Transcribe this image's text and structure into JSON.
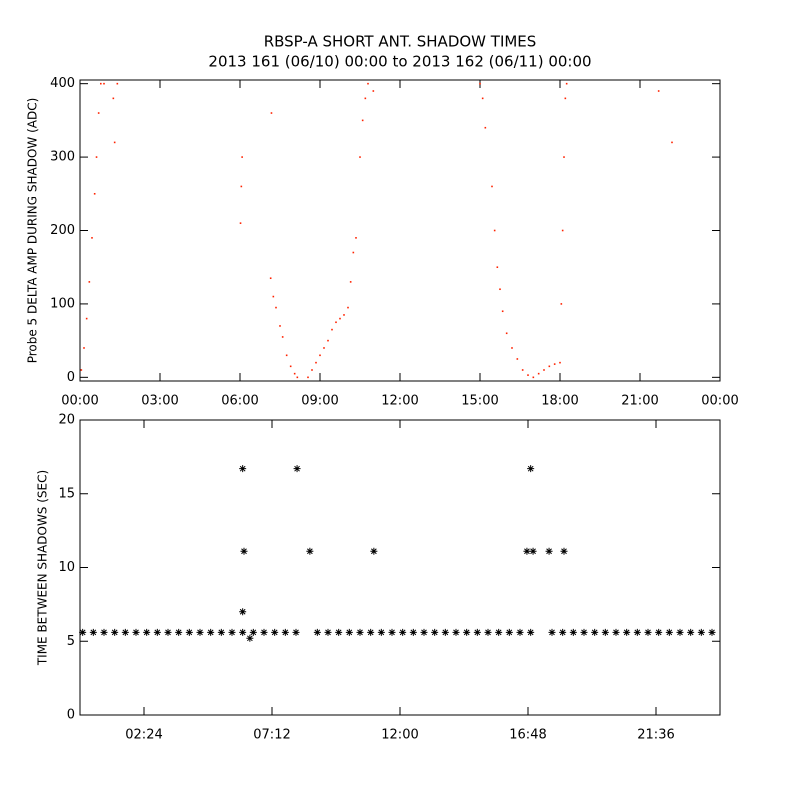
{
  "chart_data": [
    {
      "type": "scatter",
      "title": "RBSP-A SHORT ANT. SHADOW TIMES",
      "subtitle": "2013 161 (06/10) 00:00 to 2013 162 (06/11) 00:00",
      "y_label": "Probe 5 DELTA AMP DURING SHADOW (ADC)",
      "marker": "dot",
      "color": "#ff2200",
      "xlim": [
        0,
        24
      ],
      "xticks": [
        {
          "value": 0,
          "label": "00:00"
        },
        {
          "value": 3,
          "label": "03:00"
        },
        {
          "value": 6,
          "label": "06:00"
        },
        {
          "value": 9,
          "label": "09:00"
        },
        {
          "value": 12,
          "label": "12:00"
        },
        {
          "value": 15,
          "label": "15:00"
        },
        {
          "value": 18,
          "label": "18:00"
        },
        {
          "value": 21,
          "label": "21:00"
        },
        {
          "value": 24,
          "label": "00:00"
        }
      ],
      "ylim": [
        -5,
        405
      ],
      "yticks": [
        0,
        100,
        200,
        300,
        400
      ],
      "x": [
        0.05,
        0.15,
        0.25,
        0.35,
        0.45,
        0.55,
        0.62,
        0.7,
        0.78,
        0.9,
        1.25,
        1.3,
        1.4,
        6.02,
        6.05,
        6.08,
        7.15,
        7.18,
        7.25,
        7.35,
        7.5,
        7.6,
        7.75,
        7.9,
        8.05,
        8.15,
        8.55,
        8.7,
        8.85,
        9.0,
        9.15,
        9.3,
        9.45,
        9.6,
        9.75,
        9.9,
        10.05,
        10.15,
        10.25,
        10.35,
        10.5,
        10.6,
        10.7,
        10.8,
        11.0,
        15.0,
        15.1,
        15.2,
        15.45,
        15.55,
        15.65,
        15.75,
        15.85,
        16.0,
        16.2,
        16.4,
        16.6,
        16.8,
        17.0,
        17.2,
        17.4,
        17.6,
        17.8,
        18.0,
        18.05,
        18.1,
        18.15,
        18.2,
        18.25,
        21.7,
        22.2
      ],
      "values": [
        10,
        40,
        80,
        130,
        190,
        250,
        300,
        360,
        400,
        400,
        380,
        320,
        400,
        210,
        260,
        300,
        135,
        360,
        110,
        95,
        70,
        55,
        30,
        15,
        5,
        0,
        0,
        10,
        20,
        30,
        40,
        50,
        65,
        75,
        80,
        85,
        95,
        130,
        170,
        190,
        300,
        350,
        380,
        400,
        390,
        400,
        380,
        340,
        260,
        200,
        150,
        120,
        90,
        60,
        40,
        25,
        10,
        3,
        0,
        5,
        10,
        15,
        18,
        20,
        100,
        200,
        300,
        380,
        400,
        390,
        320
      ]
    },
    {
      "type": "scatter",
      "y_label": "TIME BETWEEN SHADOWS (SEC)",
      "marker": "asterisk",
      "color": "#000000",
      "xlim": [
        0,
        24
      ],
      "xticks": [
        {
          "value": 2.4,
          "label": "02:24"
        },
        {
          "value": 7.2,
          "label": "07:12"
        },
        {
          "value": 12,
          "label": "12:00"
        },
        {
          "value": 16.8,
          "label": "16:48"
        },
        {
          "value": 21.6,
          "label": "21:36"
        }
      ],
      "ylim": [
        0,
        20
      ],
      "yticks": [
        0,
        5,
        10,
        15,
        20
      ],
      "x": [
        0.1,
        0.5,
        0.9,
        1.3,
        1.7,
        2.1,
        2.5,
        2.9,
        3.3,
        3.7,
        4.1,
        4.5,
        4.9,
        5.3,
        5.7,
        6.1,
        6.5,
        6.9,
        7.3,
        7.7,
        8.1,
        8.9,
        9.3,
        9.7,
        10.1,
        10.5,
        10.9,
        11.3,
        11.7,
        12.1,
        12.5,
        12.9,
        13.3,
        13.7,
        14.1,
        14.5,
        14.9,
        15.3,
        15.7,
        16.1,
        16.5,
        16.9,
        17.7,
        18.1,
        18.5,
        18.9,
        19.3,
        19.7,
        20.1,
        20.5,
        20.9,
        21.3,
        21.7,
        22.1,
        22.5,
        22.9,
        23.3,
        23.7,
        6.1,
        6.15,
        6.1,
        6.37,
        8.14,
        8.62,
        11.02,
        16.76,
        16.9,
        16.99,
        17.59,
        18.15
      ],
      "values": [
        5.6,
        5.6,
        5.6,
        5.6,
        5.6,
        5.6,
        5.6,
        5.6,
        5.6,
        5.6,
        5.6,
        5.6,
        5.6,
        5.6,
        5.6,
        5.6,
        5.6,
        5.6,
        5.6,
        5.6,
        5.6,
        5.6,
        5.6,
        5.6,
        5.6,
        5.6,
        5.6,
        5.6,
        5.6,
        5.6,
        5.6,
        5.6,
        5.6,
        5.6,
        5.6,
        5.6,
        5.6,
        5.6,
        5.6,
        5.6,
        5.6,
        5.6,
        5.6,
        5.6,
        5.6,
        5.6,
        5.6,
        5.6,
        5.6,
        5.6,
        5.6,
        5.6,
        5.6,
        5.6,
        5.6,
        5.6,
        5.6,
        5.6,
        16.7,
        11.1,
        7,
        5.2,
        16.7,
        11.1,
        11.1,
        11.1,
        16.7,
        11.1,
        11.1,
        11.1
      ]
    }
  ]
}
